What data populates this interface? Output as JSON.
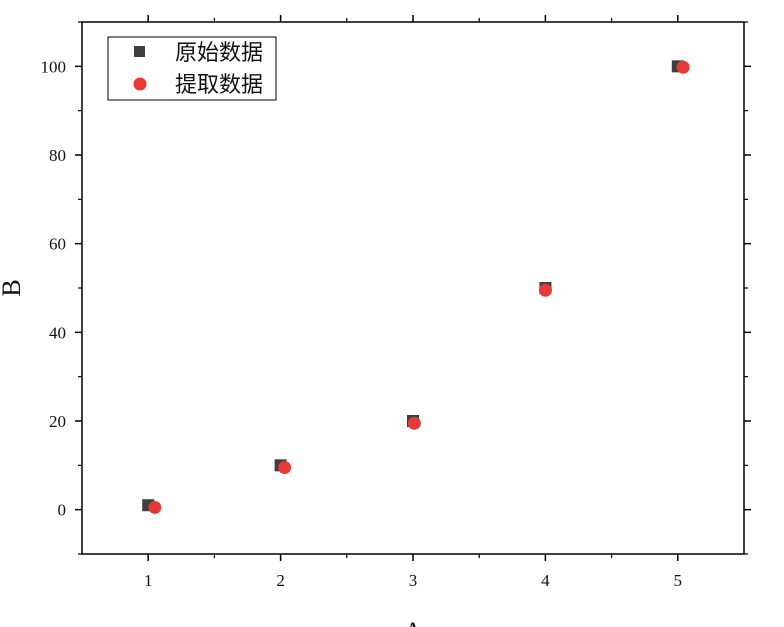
{
  "chart_data": {
    "type": "scatter",
    "xlabel": "A",
    "ylabel": "B",
    "xlim": [
      0.5,
      5.5
    ],
    "ylim": [
      -10,
      110
    ],
    "xticks": [
      1,
      2,
      3,
      4,
      5
    ],
    "yticks": [
      0,
      20,
      40,
      60,
      80,
      100
    ],
    "grid": false,
    "legend_position": "top-left",
    "series": [
      {
        "name": "原始数据",
        "marker": "square",
        "color": "#3f3f3f",
        "x": [
          1,
          2,
          3,
          4,
          5
        ],
        "y": [
          1,
          10,
          20,
          50,
          100
        ]
      },
      {
        "name": "提取数据",
        "marker": "circle",
        "color": "#e53935",
        "x": [
          1.05,
          2.03,
          3.01,
          4.0,
          5.04
        ],
        "y": [
          0.5,
          9.5,
          19.5,
          49.5,
          99.8
        ]
      }
    ]
  }
}
